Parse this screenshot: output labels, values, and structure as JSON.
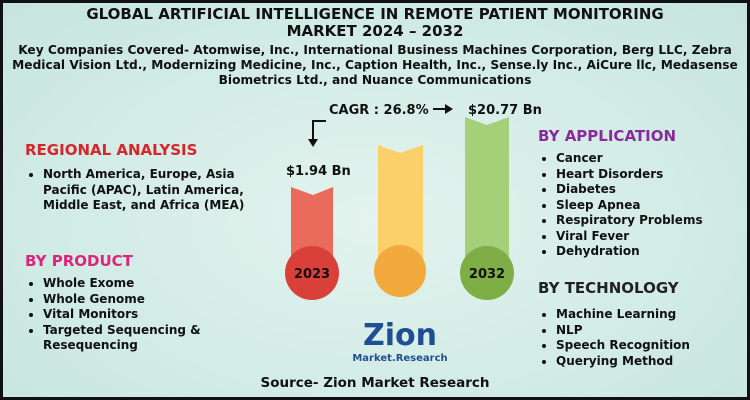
{
  "header": {
    "title": "GLOBAL ARTIFICIAL INTELLIGENCE IN REMOTE PATIENT MONITORING MARKET 2024 – 2032",
    "companies": "Key Companies Covered- Atomwise, Inc., International Business Machines Corporation, Berg LLC, Zebra Medical Vision Ltd., Modernizing Medicine, Inc., Caption Health, Inc., Sense.ly Inc., AiCure llc, Medasense Biometrics Ltd., and Nuance Communications"
  },
  "regional_analysis": {
    "heading": "REGIONAL ANALYSIS",
    "items": [
      "North America, Europe, Asia Pacific (APAC), Latin America, Middle East, and Africa (MEA)"
    ]
  },
  "by_product": {
    "heading": "BY PRODUCT",
    "items": [
      "Whole Exome",
      "Whole Genome",
      "Vital Monitors",
      "Targeted Sequencing & Resequencing"
    ]
  },
  "by_application": {
    "heading": "BY APPLICATION",
    "items": [
      "Cancer",
      "Heart Disorders",
      "Diabetes",
      "Sleep Apnea",
      "Respiratory Problems",
      "Viral Fever",
      "Dehydration"
    ]
  },
  "by_technology": {
    "heading": "BY TECHNOLOGY",
    "items": [
      "Machine Learning",
      "NLP",
      "Speech Recognition",
      "Querying Method"
    ]
  },
  "market": {
    "cagr": "CAGR : 26.8%",
    "start": {
      "year": "2023",
      "value": "$1.94 Bn"
    },
    "end": {
      "year": "2032",
      "value": "$20.77 Bn"
    }
  },
  "logo": {
    "name": "Zion",
    "sub": "Market.Research"
  },
  "source": "Source- Zion Market Research"
}
